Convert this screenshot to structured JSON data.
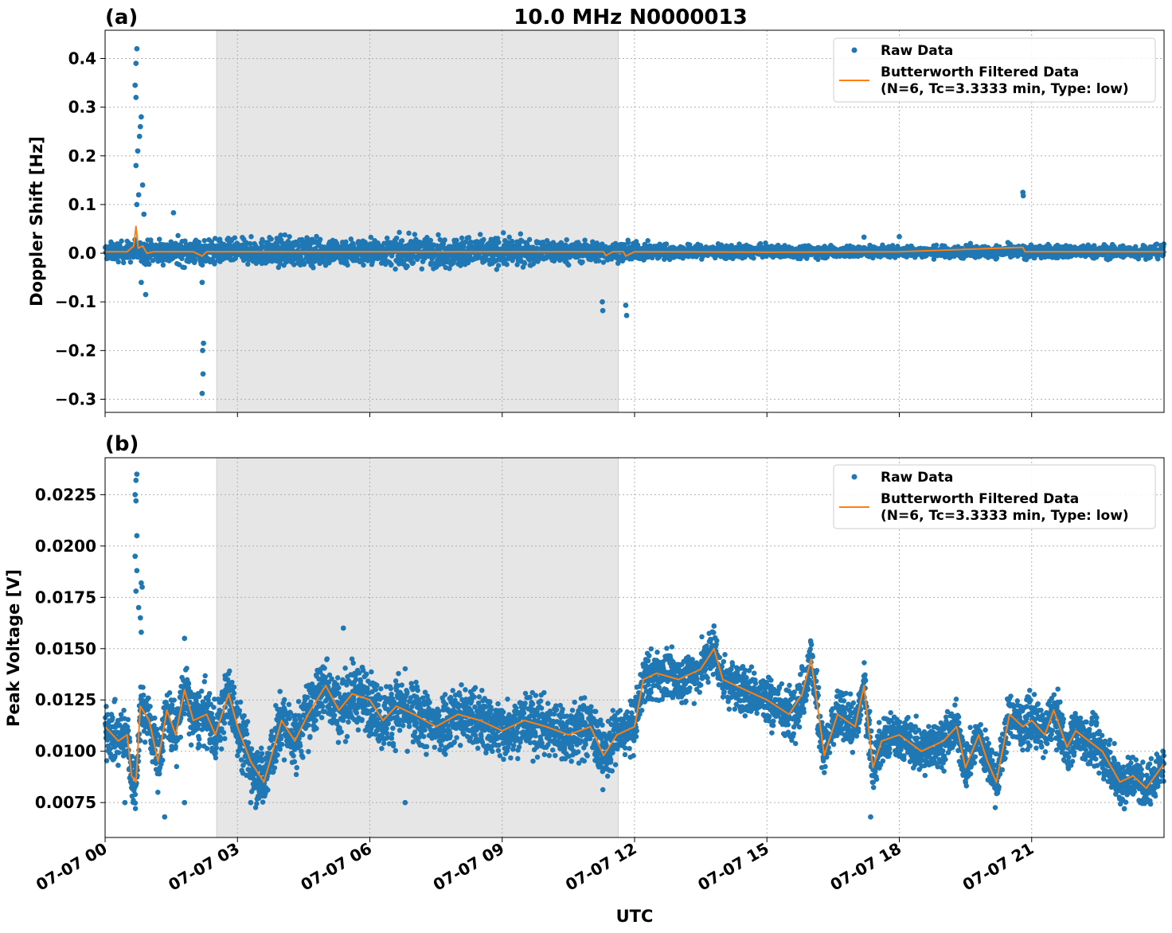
{
  "figure": {
    "title": "10.0 MHz N0000013",
    "xlabel": "UTC",
    "x_ticks": [
      "07-07 00",
      "07-07 03",
      "07-07 06",
      "07-07 09",
      "07-07 12",
      "07-07 15",
      "07-07 18",
      "07-07 21"
    ],
    "x_range_hours": [
      0,
      24
    ],
    "shaded_interval_hours": [
      2.53,
      11.63
    ]
  },
  "legend": {
    "raw_label": "Raw Data",
    "filtered_label_line1": "Butterworth Filtered Data",
    "filtered_label_line2": "(N=6, Tc=3.3333 min, Type: low)"
  },
  "colors": {
    "raw": "#1f77b4",
    "filtered": "#ff7f0e",
    "shade": "#e6e6e6",
    "grid": "#b0b0b0"
  },
  "chart_data": [
    {
      "panel": "(a)",
      "type": "scatter",
      "ylabel": "Doppler Shift [Hz]",
      "ylim": [
        -0.327,
        0.458
      ],
      "y_ticks": [
        -0.3,
        -0.2,
        -0.1,
        0.0,
        0.1,
        0.2,
        0.3,
        0.4
      ],
      "y_tick_labels": [
        "−0.3",
        "−0.2",
        "−0.1",
        "0.0",
        "0.1",
        "0.2",
        "0.3",
        "0.4"
      ],
      "grid": true,
      "legend_position": "top-right",
      "band_envelope": {
        "hours": [
          0,
          1,
          2,
          3,
          4,
          5,
          6,
          7,
          8,
          9,
          10,
          11,
          12,
          13,
          14,
          15,
          16,
          17,
          18,
          19,
          20,
          21,
          22,
          23,
          24
        ],
        "half_width_hz": [
          0.018,
          0.025,
          0.028,
          0.025,
          0.03,
          0.03,
          0.028,
          0.03,
          0.032,
          0.03,
          0.025,
          0.022,
          0.018,
          0.015,
          0.014,
          0.013,
          0.013,
          0.012,
          0.012,
          0.012,
          0.013,
          0.014,
          0.014,
          0.014,
          0.014
        ]
      },
      "outliers": [
        {
          "x": 0.72,
          "y": 0.42
        },
        {
          "x": 0.7,
          "y": 0.39
        },
        {
          "x": 0.68,
          "y": 0.345
        },
        {
          "x": 0.7,
          "y": 0.32
        },
        {
          "x": 0.82,
          "y": 0.28
        },
        {
          "x": 0.8,
          "y": 0.26
        },
        {
          "x": 0.78,
          "y": 0.24
        },
        {
          "x": 0.74,
          "y": 0.21
        },
        {
          "x": 0.7,
          "y": 0.18
        },
        {
          "x": 0.85,
          "y": 0.14
        },
        {
          "x": 0.76,
          "y": 0.12
        },
        {
          "x": 0.72,
          "y": 0.1
        },
        {
          "x": 0.88,
          "y": 0.08
        },
        {
          "x": 1.55,
          "y": 0.083
        },
        {
          "x": 0.82,
          "y": -0.06
        },
        {
          "x": 0.92,
          "y": -0.085
        },
        {
          "x": 2.2,
          "y": -0.06
        },
        {
          "x": 2.23,
          "y": -0.185
        },
        {
          "x": 2.21,
          "y": -0.2
        },
        {
          "x": 2.22,
          "y": -0.248
        },
        {
          "x": 2.2,
          "y": -0.288
        },
        {
          "x": 11.27,
          "y": -0.1
        },
        {
          "x": 11.28,
          "y": -0.118
        },
        {
          "x": 11.8,
          "y": -0.107
        },
        {
          "x": 11.82,
          "y": -0.128
        },
        {
          "x": 20.8,
          "y": 0.125
        },
        {
          "x": 20.81,
          "y": 0.118
        },
        {
          "x": 17.2,
          "y": 0.033
        },
        {
          "x": 18.0,
          "y": 0.034
        }
      ],
      "filtered": {
        "x": [
          0,
          0.5,
          0.65,
          0.7,
          0.75,
          0.85,
          0.95,
          1.1,
          2.0,
          2.2,
          2.3,
          3,
          6,
          9,
          11.3,
          11.35,
          11.5,
          11.75,
          11.8,
          12,
          15,
          18,
          20.8,
          20.85,
          21,
          24
        ],
        "y": [
          0.003,
          0.003,
          0.015,
          0.055,
          0.01,
          0.015,
          0.0,
          0.003,
          0.003,
          -0.006,
          0.003,
          0.003,
          0.003,
          0.003,
          0.003,
          -0.005,
          0.003,
          0.003,
          -0.006,
          0.003,
          0.002,
          0.003,
          0.012,
          0.003,
          0.003,
          0.003
        ]
      }
    },
    {
      "panel": "(b)",
      "type": "scatter",
      "ylabel": "Peak Voltage [V]",
      "ylim": [
        0.0058,
        0.0243
      ],
      "y_ticks": [
        0.0075,
        0.01,
        0.0125,
        0.015,
        0.0175,
        0.02,
        0.0225
      ],
      "y_tick_labels": [
        "0.0075",
        "0.0100",
        "0.0125",
        "0.0150",
        "0.0175",
        "0.0200",
        "0.0225"
      ],
      "grid": true,
      "legend_position": "top-right",
      "filtered": {
        "x": [
          0,
          0.3,
          0.5,
          0.6,
          0.7,
          0.8,
          1.0,
          1.2,
          1.4,
          1.6,
          1.8,
          2.0,
          2.3,
          2.5,
          2.8,
          3.0,
          3.3,
          3.6,
          4.0,
          4.3,
          4.6,
          4.8,
          5.0,
          5.3,
          5.6,
          6.0,
          6.3,
          6.6,
          7.0,
          7.5,
          8.0,
          8.5,
          9.0,
          9.5,
          10.0,
          10.5,
          11.0,
          11.3,
          11.6,
          12.0,
          12.2,
          12.5,
          13.0,
          13.5,
          13.8,
          14.0,
          14.5,
          15.0,
          15.5,
          15.8,
          16.0,
          16.3,
          16.6,
          17.0,
          17.2,
          17.4,
          17.6,
          18.0,
          18.5,
          19.0,
          19.3,
          19.5,
          19.8,
          20.0,
          20.2,
          20.5,
          20.8,
          21.0,
          21.3,
          21.5,
          21.8,
          22.0,
          22.3,
          22.6,
          23.0,
          23.3,
          23.6,
          24.0
        ],
        "y": [
          0.0112,
          0.0105,
          0.0108,
          0.0088,
          0.0085,
          0.0122,
          0.0115,
          0.0095,
          0.012,
          0.0108,
          0.013,
          0.0115,
          0.0118,
          0.0108,
          0.0128,
          0.0112,
          0.0095,
          0.0085,
          0.0115,
          0.0105,
          0.0118,
          0.0125,
          0.0132,
          0.012,
          0.0128,
          0.0125,
          0.0115,
          0.0122,
          0.0118,
          0.0112,
          0.0118,
          0.0115,
          0.011,
          0.0115,
          0.0112,
          0.0108,
          0.0112,
          0.0098,
          0.0108,
          0.0112,
          0.0135,
          0.0138,
          0.0135,
          0.014,
          0.015,
          0.0135,
          0.013,
          0.0125,
          0.0118,
          0.0128,
          0.0145,
          0.0098,
          0.0118,
          0.0112,
          0.0132,
          0.0092,
          0.0105,
          0.0108,
          0.01,
          0.0105,
          0.0112,
          0.0092,
          0.0108,
          0.0095,
          0.0085,
          0.0118,
          0.0112,
          0.0115,
          0.0108,
          0.012,
          0.0102,
          0.011,
          0.0105,
          0.01,
          0.0085,
          0.0088,
          0.0082,
          0.0094
        ]
      },
      "band_half_width_v": [
        0.0014,
        0.0014,
        0.0015,
        0.0016,
        0.0016,
        0.0016,
        0.0016,
        0.0016,
        0.0016,
        0.0015,
        0.0015,
        0.0015,
        0.0013,
        0.0012,
        0.0012,
        0.0013,
        0.0014,
        0.0012,
        0.0012,
        0.0012,
        0.0012,
        0.0012,
        0.0012,
        0.0012,
        0.0011
      ],
      "outliers": [
        {
          "x": 0.72,
          "y": 0.0235
        },
        {
          "x": 0.7,
          "y": 0.0232
        },
        {
          "x": 0.68,
          "y": 0.0225
        },
        {
          "x": 0.7,
          "y": 0.0222
        },
        {
          "x": 0.72,
          "y": 0.0205
        },
        {
          "x": 0.68,
          "y": 0.0195
        },
        {
          "x": 0.72,
          "y": 0.0188
        },
        {
          "x": 0.7,
          "y": 0.0178
        },
        {
          "x": 0.82,
          "y": 0.0182
        },
        {
          "x": 0.84,
          "y": 0.018
        },
        {
          "x": 0.76,
          "y": 0.017
        },
        {
          "x": 0.8,
          "y": 0.0165
        },
        {
          "x": 0.82,
          "y": 0.0158
        },
        {
          "x": 1.8,
          "y": 0.0155
        },
        {
          "x": 5.4,
          "y": 0.016
        },
        {
          "x": 13.8,
          "y": 0.0161
        },
        {
          "x": 1.35,
          "y": 0.0068
        },
        {
          "x": 1.8,
          "y": 0.0075
        },
        {
          "x": 17.35,
          "y": 0.0068
        },
        {
          "x": 23.1,
          "y": 0.0072
        },
        {
          "x": 6.8,
          "y": 0.0075
        },
        {
          "x": 3.3,
          "y": 0.0075
        },
        {
          "x": 0.45,
          "y": 0.0075
        }
      ]
    }
  ]
}
